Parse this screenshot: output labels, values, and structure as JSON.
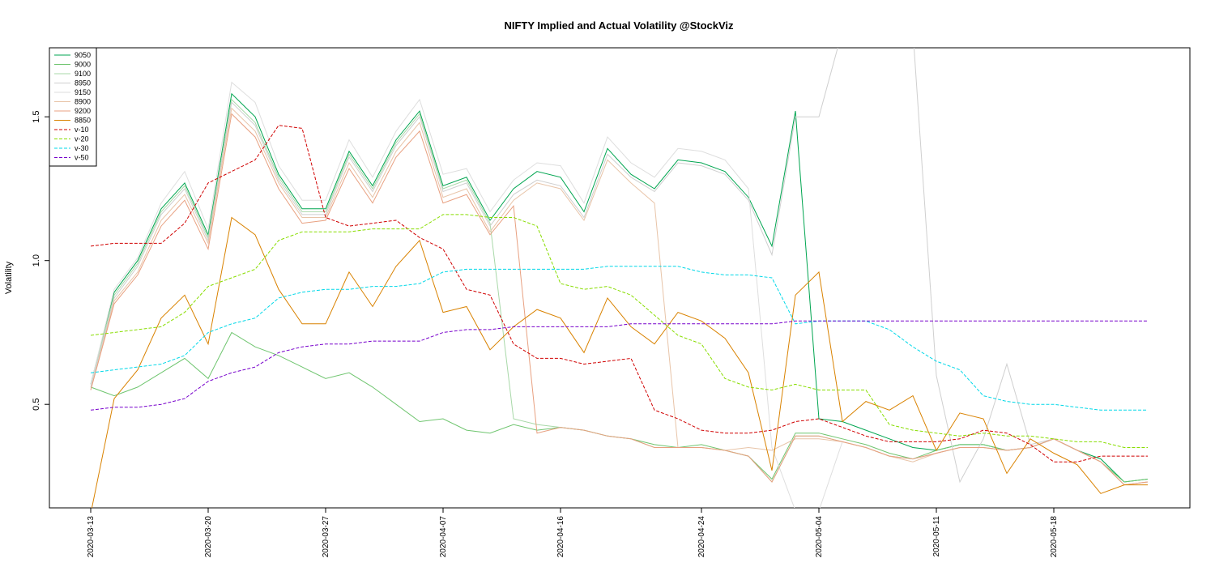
{
  "chart_data": {
    "type": "line",
    "title": "NIFTY Implied and Actual Volatility @StockViz",
    "xlabel": "",
    "ylabel": "Volatility",
    "ylim": [
      0.14,
      1.74
    ],
    "yticks": [
      0.5,
      1.0,
      1.5
    ],
    "ytick_labels": [
      "0.5",
      "1.0",
      "1.5"
    ],
    "grid": false,
    "legend_position": "top-left",
    "x": [
      "2020-03-13",
      "2020-03-16",
      "2020-03-17",
      "2020-03-18",
      "2020-03-19",
      "2020-03-20",
      "2020-03-23",
      "2020-03-24",
      "2020-03-25",
      "2020-03-26",
      "2020-03-27",
      "2020-03-30",
      "2020-03-31",
      "2020-04-01",
      "2020-04-03",
      "2020-04-07",
      "2020-04-08",
      "2020-04-09",
      "2020-04-13",
      "2020-04-15",
      "2020-04-16",
      "2020-04-17",
      "2020-04-20",
      "2020-04-21",
      "2020-04-22",
      "2020-04-23",
      "2020-04-24",
      "2020-04-27",
      "2020-04-28",
      "2020-04-29",
      "2020-04-30",
      "2020-05-04",
      "2020-05-05",
      "2020-05-06",
      "2020-05-07",
      "2020-05-08",
      "2020-05-11",
      "2020-05-12",
      "2020-05-13",
      "2020-05-14",
      "2020-05-15",
      "2020-05-18",
      "2020-05-19",
      "2020-05-20",
      "2020-05-21",
      "2020-05-22"
    ],
    "xtick_labels": [
      "2020-03-13",
      "2020-03-20",
      "2020-03-27",
      "2020-04-07",
      "2020-04-16",
      "2020-04-24",
      "2020-05-04",
      "2020-05-11",
      "2020-05-18"
    ],
    "series": [
      {
        "name": "9050",
        "color": "#00a550",
        "dash": "",
        "values": [
          0.57,
          0.89,
          1.0,
          1.18,
          1.27,
          1.09,
          1.58,
          1.5,
          1.3,
          1.18,
          1.18,
          1.38,
          1.26,
          1.42,
          1.52,
          1.26,
          1.29,
          1.14,
          1.25,
          1.31,
          1.29,
          1.17,
          1.39,
          1.3,
          1.25,
          1.35,
          1.34,
          1.31,
          1.22,
          1.05,
          1.52,
          0.45,
          0.44,
          0.41,
          0.38,
          0.35,
          0.34,
          0.36,
          0.36,
          0.34,
          0.35,
          0.38,
          0.34,
          0.31,
          0.23,
          0.24
        ]
      },
      {
        "name": "9000",
        "color": "#6fc56f",
        "dash": "",
        "values": [
          0.56,
          0.53,
          0.56,
          0.61,
          0.66,
          0.59,
          0.75,
          0.7,
          0.67,
          0.63,
          0.59,
          0.61,
          0.56,
          0.5,
          0.44,
          0.45,
          0.41,
          0.4,
          0.43,
          0.41,
          0.42,
          0.41,
          0.39,
          0.38,
          0.36,
          0.35,
          0.36,
          0.34,
          0.32,
          0.24,
          0.4,
          0.4,
          0.38,
          0.36,
          0.33,
          0.31,
          0.34,
          0.36,
          0.36,
          0.34,
          0.35,
          0.38,
          0.34,
          0.3,
          0.23,
          0.24
        ]
      },
      {
        "name": "9100",
        "color": "#a8d8a8",
        "dash": "",
        "values": [
          0.57,
          0.88,
          0.99,
          1.17,
          1.26,
          1.08,
          1.56,
          1.48,
          1.29,
          1.17,
          1.17,
          1.37,
          1.25,
          1.41,
          1.51,
          1.25,
          1.28,
          1.13,
          0.45,
          0.43,
          0.42,
          0.41,
          0.39,
          0.38,
          0.35,
          0.35,
          0.35,
          0.34,
          0.32,
          0.23,
          0.39,
          0.39,
          0.37,
          0.35,
          0.32,
          0.31,
          0.33,
          0.35,
          0.35,
          0.34,
          0.35,
          0.38,
          0.34,
          0.3,
          0.22,
          0.23
        ]
      },
      {
        "name": "8950",
        "color": "#cfcfcf",
        "dash": "",
        "values": [
          0.56,
          0.87,
          0.98,
          1.16,
          1.25,
          1.07,
          1.55,
          1.47,
          1.28,
          1.16,
          1.16,
          1.36,
          1.24,
          1.4,
          1.5,
          1.24,
          1.27,
          1.12,
          1.23,
          1.28,
          1.26,
          1.15,
          1.37,
          1.29,
          1.24,
          1.34,
          1.33,
          1.3,
          1.21,
          1.02,
          1.5,
          1.5,
          1.8,
          1.8,
          1.8,
          1.8,
          0.6,
          0.23,
          0.38,
          0.64,
          0.36,
          0.38,
          0.34,
          0.3,
          0.22,
          0.23
        ]
      },
      {
        "name": "9150",
        "color": "#dedede",
        "dash": "",
        "values": [
          0.57,
          0.9,
          1.01,
          1.2,
          1.31,
          1.11,
          1.62,
          1.55,
          1.33,
          1.21,
          1.21,
          1.42,
          1.29,
          1.45,
          1.56,
          1.3,
          1.32,
          1.17,
          1.28,
          1.34,
          1.33,
          1.2,
          1.43,
          1.34,
          1.29,
          1.39,
          1.38,
          1.35,
          1.25,
          0.35,
          0.13,
          0.13,
          0.37,
          0.35,
          0.32,
          0.31,
          0.33,
          0.35,
          0.35,
          0.34,
          0.35,
          0.38,
          0.34,
          0.3,
          0.22,
          0.23
        ]
      },
      {
        "name": "8900",
        "color": "#e8c4a8",
        "dash": "",
        "values": [
          0.55,
          0.86,
          0.96,
          1.14,
          1.23,
          1.06,
          1.53,
          1.45,
          1.27,
          1.15,
          1.15,
          1.34,
          1.22,
          1.38,
          1.48,
          1.22,
          1.25,
          1.1,
          1.21,
          1.27,
          1.25,
          1.14,
          1.35,
          1.27,
          1.2,
          0.35,
          0.35,
          0.34,
          0.35,
          0.34,
          0.38,
          0.38,
          0.37,
          0.35,
          0.32,
          0.3,
          0.33,
          0.35,
          0.35,
          0.34,
          0.35,
          0.38,
          0.34,
          0.3,
          0.22,
          0.23
        ]
      },
      {
        "name": "9200",
        "color": "#e8a080",
        "dash": "",
        "values": [
          0.55,
          0.85,
          0.95,
          1.12,
          1.21,
          1.04,
          1.51,
          1.43,
          1.25,
          1.13,
          1.14,
          1.32,
          1.2,
          1.36,
          1.45,
          1.2,
          1.23,
          1.09,
          1.19,
          0.4,
          0.42,
          0.41,
          0.39,
          0.38,
          0.35,
          0.35,
          0.35,
          0.34,
          0.32,
          0.23,
          0.39,
          0.39,
          0.37,
          0.35,
          0.32,
          0.31,
          0.33,
          0.35,
          0.35,
          0.34,
          0.35,
          0.38,
          0.34,
          0.3,
          0.22,
          0.23
        ]
      },
      {
        "name": "8850",
        "color": "#d98200",
        "dash": "",
        "values": [
          0.12,
          0.52,
          0.62,
          0.8,
          0.88,
          0.71,
          1.15,
          1.09,
          0.9,
          0.78,
          0.78,
          0.96,
          0.84,
          0.98,
          1.07,
          0.82,
          0.84,
          0.69,
          0.77,
          0.83,
          0.8,
          0.68,
          0.87,
          0.77,
          0.71,
          0.82,
          0.79,
          0.73,
          0.61,
          0.27,
          0.88,
          0.96,
          0.44,
          0.51,
          0.48,
          0.53,
          0.34,
          0.47,
          0.45,
          0.26,
          0.38,
          0.33,
          0.29,
          0.19,
          0.22,
          0.22
        ]
      },
      {
        "name": "v-10",
        "color": "#d00000",
        "dash": "4,2",
        "values": [
          1.05,
          1.06,
          1.06,
          1.06,
          1.13,
          1.27,
          1.31,
          1.35,
          1.47,
          1.46,
          1.15,
          1.12,
          1.13,
          1.14,
          1.08,
          1.04,
          0.9,
          0.88,
          0.71,
          0.66,
          0.66,
          0.64,
          0.65,
          0.66,
          0.48,
          0.45,
          0.41,
          0.4,
          0.4,
          0.41,
          0.44,
          0.45,
          0.42,
          0.39,
          0.37,
          0.37,
          0.37,
          0.38,
          0.41,
          0.4,
          0.36,
          0.3,
          0.3,
          0.32,
          0.32,
          0.32
        ]
      },
      {
        "name": "v-20",
        "color": "#88dd00",
        "dash": "4,2",
        "values": [
          0.74,
          0.75,
          0.76,
          0.77,
          0.82,
          0.91,
          0.94,
          0.97,
          1.07,
          1.1,
          1.1,
          1.1,
          1.11,
          1.11,
          1.11,
          1.16,
          1.16,
          1.15,
          1.15,
          1.12,
          0.92,
          0.9,
          0.91,
          0.88,
          0.81,
          0.74,
          0.71,
          0.59,
          0.56,
          0.55,
          0.57,
          0.55,
          0.55,
          0.55,
          0.43,
          0.41,
          0.4,
          0.39,
          0.4,
          0.39,
          0.39,
          0.38,
          0.37,
          0.37,
          0.35,
          0.35
        ]
      },
      {
        "name": "v-30",
        "color": "#00d8e8",
        "dash": "4,2",
        "values": [
          0.61,
          0.62,
          0.63,
          0.64,
          0.67,
          0.75,
          0.78,
          0.8,
          0.87,
          0.89,
          0.9,
          0.9,
          0.91,
          0.91,
          0.92,
          0.96,
          0.97,
          0.97,
          0.97,
          0.97,
          0.97,
          0.97,
          0.98,
          0.98,
          0.98,
          0.98,
          0.96,
          0.95,
          0.95,
          0.94,
          0.78,
          0.79,
          0.79,
          0.79,
          0.76,
          0.7,
          0.65,
          0.62,
          0.53,
          0.51,
          0.5,
          0.5,
          0.49,
          0.48,
          0.48,
          0.48
        ]
      },
      {
        "name": "v-50",
        "color": "#7700cc",
        "dash": "4,2",
        "values": [
          0.48,
          0.49,
          0.49,
          0.5,
          0.52,
          0.58,
          0.61,
          0.63,
          0.68,
          0.7,
          0.71,
          0.71,
          0.72,
          0.72,
          0.72,
          0.75,
          0.76,
          0.76,
          0.77,
          0.77,
          0.77,
          0.77,
          0.77,
          0.78,
          0.78,
          0.78,
          0.78,
          0.78,
          0.78,
          0.78,
          0.79,
          0.79,
          0.79,
          0.79,
          0.79,
          0.79,
          0.79,
          0.79,
          0.79,
          0.79,
          0.79,
          0.79,
          0.79,
          0.79,
          0.79,
          0.79
        ]
      }
    ]
  }
}
